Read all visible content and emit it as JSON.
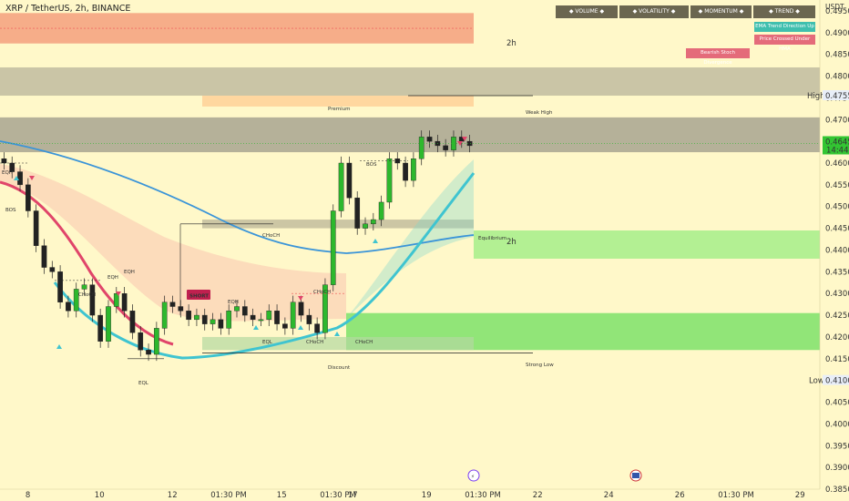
{
  "header": {
    "symbol_line": "XRP / TetherUS, 2h, BINANCE"
  },
  "currency": "USDT",
  "table": {
    "headers": [
      "VOLUME",
      "VOLATILITY",
      "MOMENTUM",
      "TREND"
    ],
    "badges": [
      {
        "text": "EMA Trend Direction Up",
        "color": "#3fbfae"
      },
      {
        "text": "Price Crossed Under HMA",
        "color": "#e46b7a"
      },
      {
        "text": "Bearish Stoch Divergence",
        "color": "#e46b7a"
      }
    ]
  },
  "price_axis": {
    "ticks": [
      "0.4950",
      "0.4900",
      "0.4850",
      "0.4800",
      "0.4750",
      "0.4700",
      "0.4650",
      "0.4600",
      "0.4550",
      "0.4500",
      "0.4450",
      "0.4400",
      "0.4350",
      "0.4300",
      "0.4250",
      "0.4200",
      "0.4150",
      "0.4100",
      "0.4050",
      "0.4000",
      "0.3950",
      "0.3900",
      "0.3850"
    ],
    "high_label": "High",
    "high_value": "0.4755",
    "low_label": "Low",
    "low_value": "0.4100",
    "last_price": "0.4645",
    "countdown": "14:44"
  },
  "time_axis": {
    "ticks": [
      "8",
      "10",
      "12",
      "01:30 PM",
      "15",
      "01:30 PM",
      "17",
      "19",
      "01:30 PM",
      "22",
      "24",
      "26",
      "01:30 PM",
      "29"
    ]
  },
  "annotations": {
    "tf_top": "2h",
    "tf_mid": "2h",
    "premium": "Premium",
    "equilibrium": "Equilibrium",
    "discount": "Discount",
    "weak_high": "Weak High",
    "strong_low": "Strong Low",
    "short": "SHORT",
    "choch": "CHoCH",
    "bos": "BOS",
    "eqh": "EQH",
    "eql": "EQL"
  },
  "chart_data": {
    "type": "candlestick",
    "symbol": "XRP / TetherUS",
    "interval": "2h",
    "exchange": "BINANCE",
    "ylim": [
      0.385,
      0.4975
    ],
    "last_price": 0.4645,
    "high": 0.4755,
    "low": 0.41,
    "close_path": [
      0.46,
      0.458,
      0.455,
      0.449,
      0.441,
      0.436,
      0.435,
      0.428,
      0.426,
      0.431,
      0.432,
      0.425,
      0.419,
      0.427,
      0.43,
      0.426,
      0.421,
      0.417,
      0.416,
      0.422,
      0.428,
      0.427,
      0.426,
      0.424,
      0.425,
      0.423,
      0.424,
      0.422,
      0.426,
      0.427,
      0.425,
      0.424,
      0.424,
      0.426,
      0.423,
      0.422,
      0.428,
      0.425,
      0.423,
      0.421,
      0.432,
      0.449,
      0.46,
      0.452,
      0.445,
      0.446,
      0.447,
      0.451,
      0.461,
      0.46,
      0.456,
      0.461,
      0.466,
      0.465,
      0.464,
      0.463,
      0.466,
      0.465,
      0.464
    ],
    "zones": [
      {
        "name": "supply",
        "from": 0.4875,
        "to": 0.4945
      },
      {
        "name": "premium",
        "from": 0.4755,
        "to": 0.482
      },
      {
        "name": "ob_top",
        "from": 0.4625,
        "to": 0.4705
      },
      {
        "name": "demand_1",
        "from": 0.438,
        "to": 0.4445
      },
      {
        "name": "demand_2",
        "from": 0.417,
        "to": 0.4255
      }
    ]
  }
}
